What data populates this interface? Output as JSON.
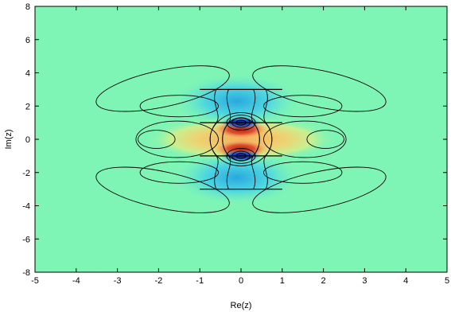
{
  "chart_data": {
    "type": "heatmap",
    "title": "",
    "xlabel": "Re(z)",
    "ylabel": "Im(z)",
    "xlim": [
      -5,
      5
    ],
    "ylim": [
      -8,
      8
    ],
    "xticks": [
      -5,
      -4,
      -3,
      -2,
      -1,
      0,
      1,
      2,
      3,
      4,
      5
    ],
    "yticks": [
      -8,
      -6,
      -4,
      -2,
      0,
      2,
      4,
      6,
      8
    ],
    "grid": false,
    "legend": "none",
    "colormap": [
      "#1a1aa0",
      "#2a6fe0",
      "#3fd2e0",
      "#7df5b0",
      "#e8f080",
      "#f5b060",
      "#e05030",
      "#b02010"
    ],
    "background_color": "#7ff5b5",
    "features": {
      "branch_cut_lines_im": [
        3,
        1,
        -1,
        -3
      ],
      "branch_cut_re_range": [
        -1,
        1
      ],
      "peak_points": [
        [
          0,
          1
        ],
        [
          0,
          -1
        ]
      ]
    }
  }
}
